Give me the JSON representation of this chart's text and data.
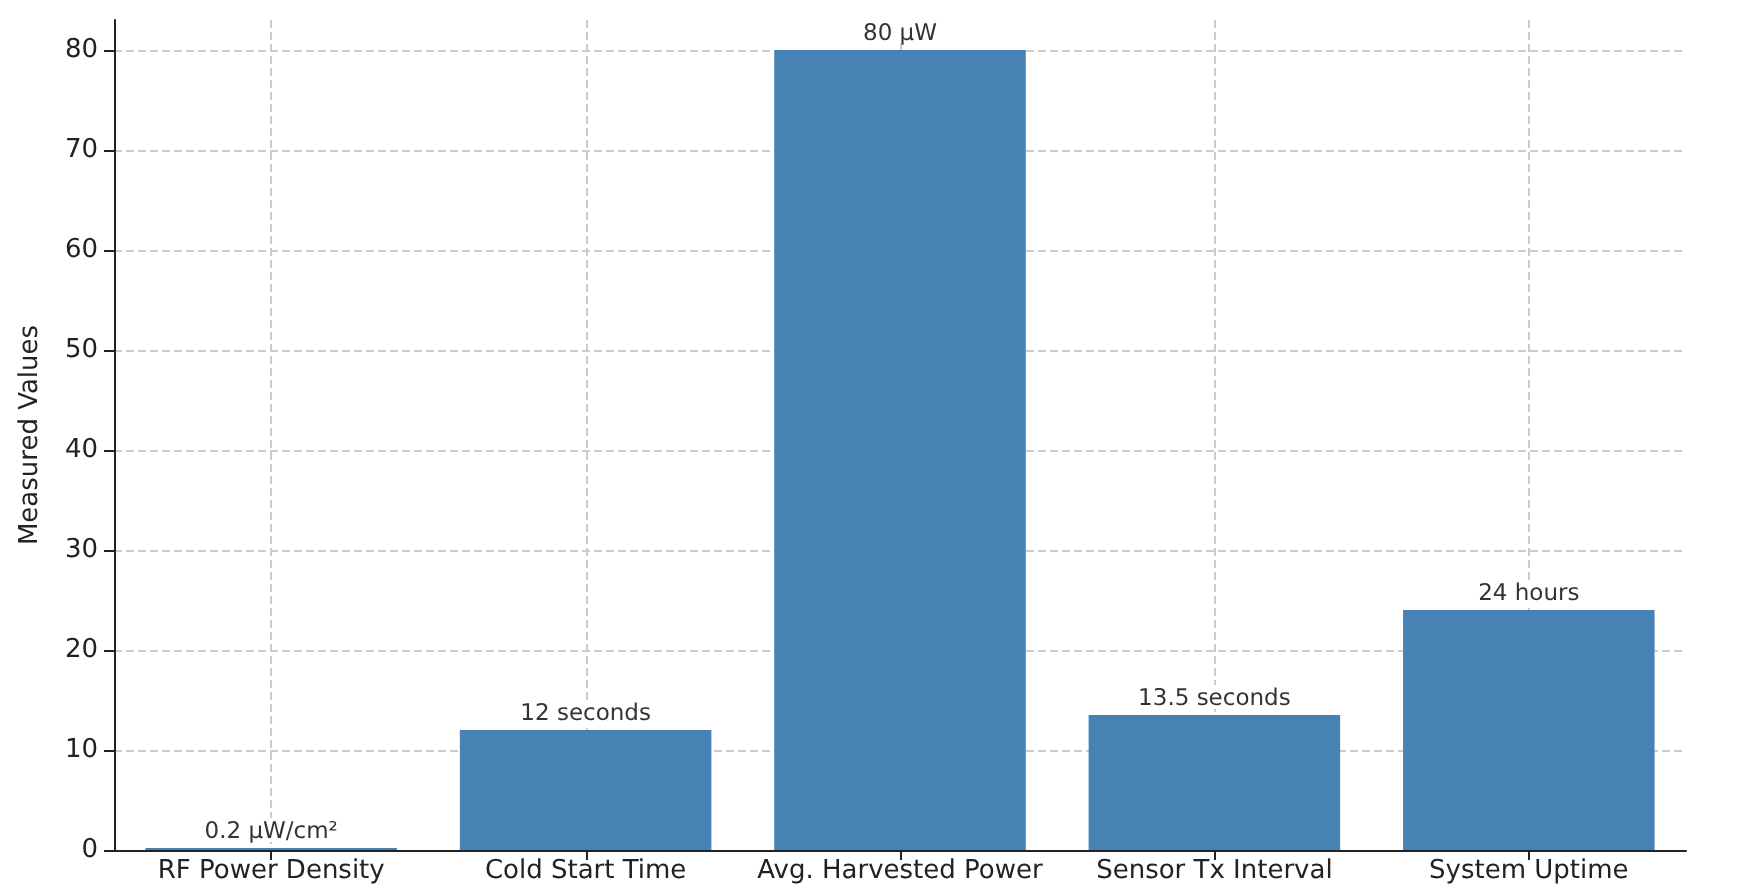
{
  "chart_data": {
    "type": "bar",
    "ylabel": "Measured Values",
    "categories": [
      "RF Power Density",
      "Cold Start Time",
      "Avg. Harvested Power",
      "Sensor Tx Interval",
      "System Uptime"
    ],
    "values": [
      0.2,
      12,
      80,
      13.5,
      24
    ],
    "value_labels": [
      "0.2 µW/cm²",
      "12 seconds",
      "80 µW",
      "13.5 seconds",
      "24 hours"
    ],
    "color": "#4682b4",
    "ylim": [
      0,
      83
    ],
    "yticks": [
      0,
      10,
      20,
      30,
      40,
      50,
      60,
      70,
      80
    ],
    "grid": true
  }
}
